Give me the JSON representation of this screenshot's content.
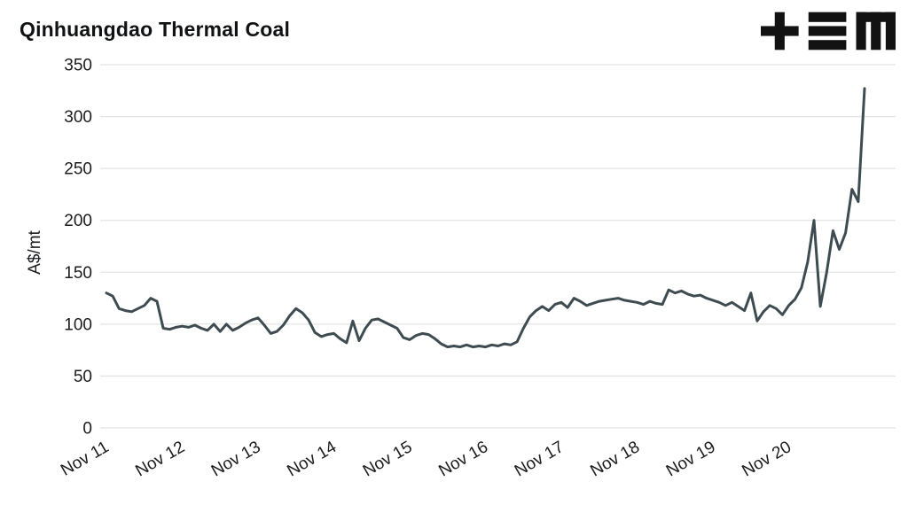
{
  "header": {
    "title": "Qinhuangdao Thermal Coal"
  },
  "logo": {
    "name": "tem-logo",
    "color": "#121212"
  },
  "chart_data": {
    "type": "line",
    "title": "Qinhuangdao Thermal Coal",
    "xlabel": "",
    "ylabel": "A$/mt",
    "ylim": [
      0,
      350
    ],
    "yticks": [
      0,
      50,
      100,
      150,
      200,
      250,
      300,
      350
    ],
    "grid": true,
    "legend": "none",
    "line_color": "#3e4c51",
    "grid_color": "#e4e4e4",
    "xtick_labels": [
      "Nov 11",
      "Nov 12",
      "Nov 13",
      "Nov 14",
      "Nov 15",
      "Nov 16",
      "Nov 17",
      "Nov 18",
      "Nov 19",
      "Nov 20"
    ],
    "xtick_indices": [
      0,
      12,
      24,
      36,
      48,
      60,
      72,
      84,
      96,
      108
    ],
    "x_unit": "months since Nov 2011",
    "values": [
      130,
      127,
      115,
      113,
      112,
      115,
      118,
      125,
      122,
      96,
      95,
      97,
      98,
      97,
      99,
      96,
      94,
      100,
      93,
      100,
      94,
      97,
      101,
      104,
      106,
      99,
      91,
      93,
      99,
      108,
      115,
      111,
      104,
      92,
      88,
      90,
      91,
      86,
      82,
      103,
      84,
      96,
      104,
      105,
      102,
      99,
      96,
      87,
      85,
      89,
      91,
      90,
      86,
      81,
      78,
      79,
      78,
      80,
      78,
      79,
      78,
      80,
      79,
      81,
      80,
      83,
      96,
      107,
      113,
      117,
      113,
      119,
      121,
      116,
      125,
      122,
      118,
      120,
      122,
      123,
      124,
      125,
      123,
      122,
      121,
      119,
      122,
      120,
      119,
      133,
      130,
      132,
      129,
      127,
      128,
      125,
      123,
      121,
      118,
      121,
      117,
      113,
      130,
      103,
      112,
      118,
      115,
      109,
      118,
      124,
      135,
      160,
      200,
      117,
      150,
      190,
      172,
      188,
      230,
      218,
      327
    ]
  }
}
